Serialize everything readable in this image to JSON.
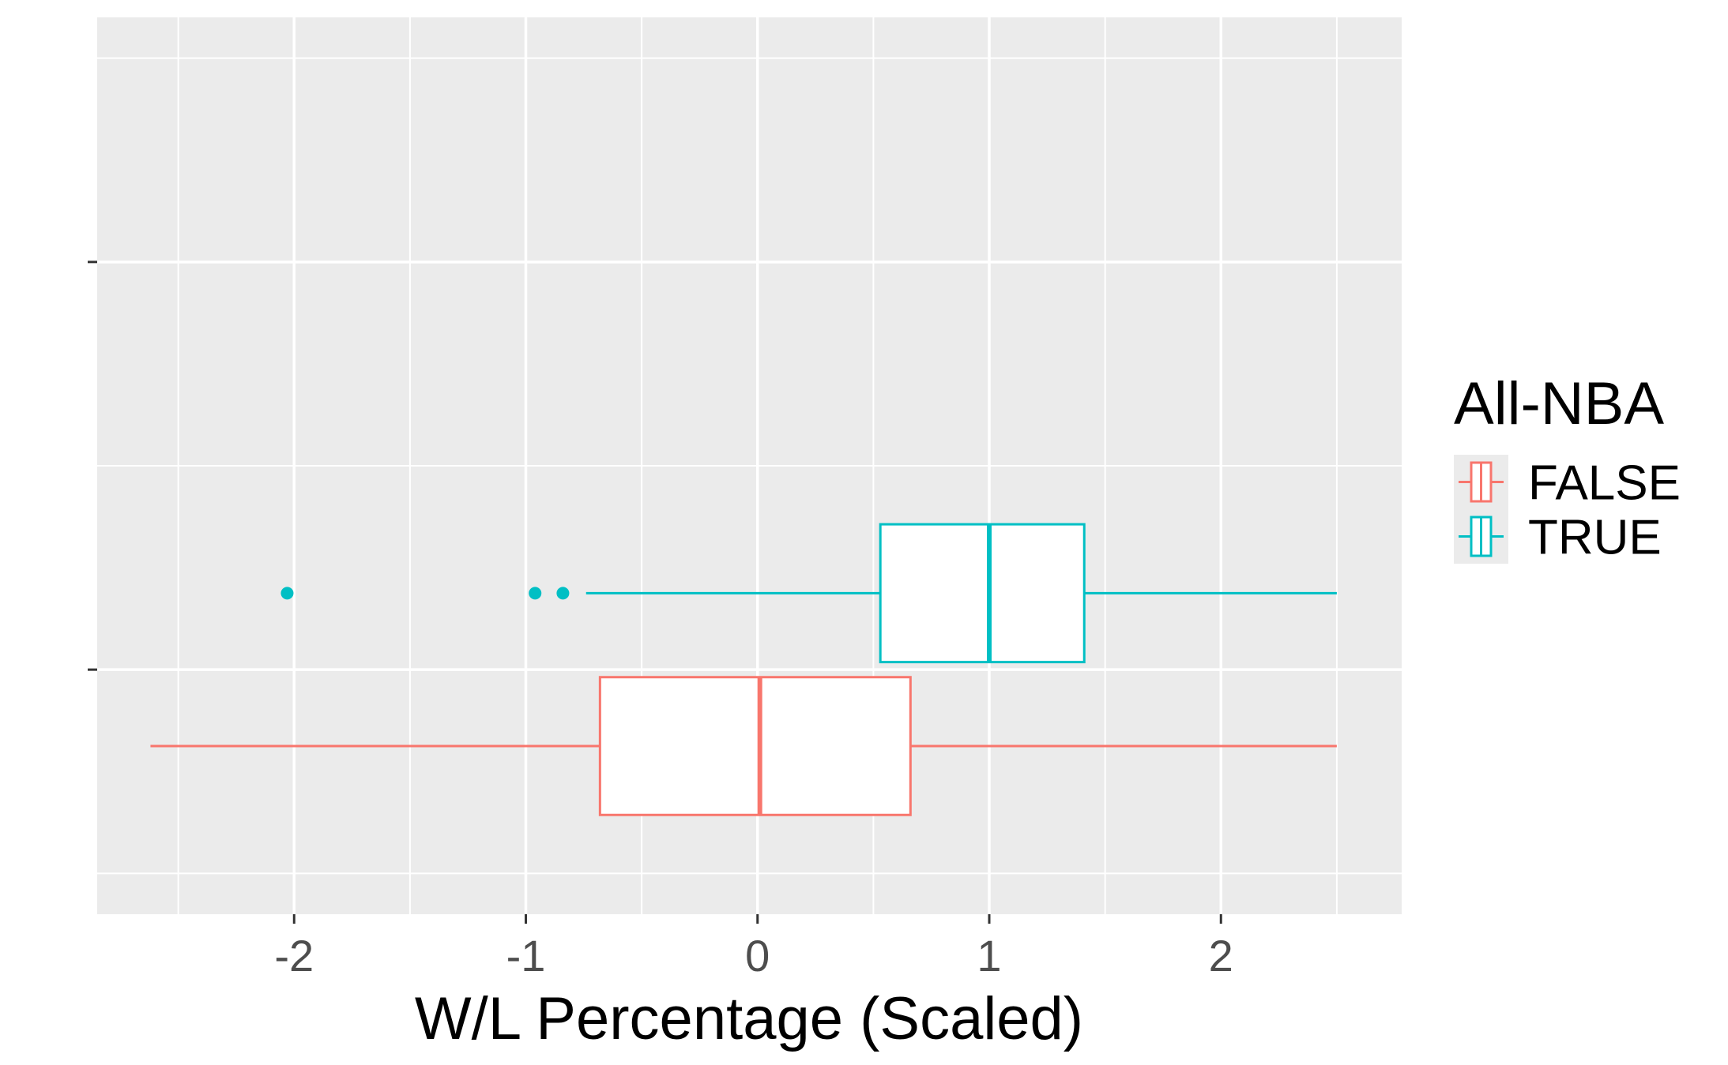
{
  "chart_data": {
    "type": "boxplot",
    "orientation": "horizontal",
    "xlabel": "W/L Percentage (Scaled)",
    "ylabel": "",
    "xlim": [
      -2.85,
      2.78
    ],
    "x_ticks": [
      -2,
      -1,
      0,
      1,
      2
    ],
    "x_tick_labels": [
      "-2",
      "-1",
      "0",
      "1",
      "2"
    ],
    "grid": true,
    "legend": {
      "title": "All-NBA",
      "placement": "right",
      "entries": [
        "FALSE",
        "TRUE"
      ]
    },
    "series": [
      {
        "name": "FALSE",
        "color": "#F8766D",
        "whisker_low": -2.62,
        "q1": -0.68,
        "median": 0.01,
        "q3": 0.66,
        "whisker_high": 2.5,
        "outliers": []
      },
      {
        "name": "TRUE",
        "color": "#00BFC4",
        "whisker_low": -0.74,
        "q1": 0.53,
        "median": 1.0,
        "q3": 1.41,
        "whisker_high": 2.5,
        "outliers": [
          -2.03,
          -0.96,
          -0.84
        ]
      }
    ],
    "colors": {
      "panel": "#EBEBEB",
      "grid": "#FFFFFF",
      "box_fill": "#FFFFFF",
      "tick_text": "#4D4D4D"
    }
  }
}
